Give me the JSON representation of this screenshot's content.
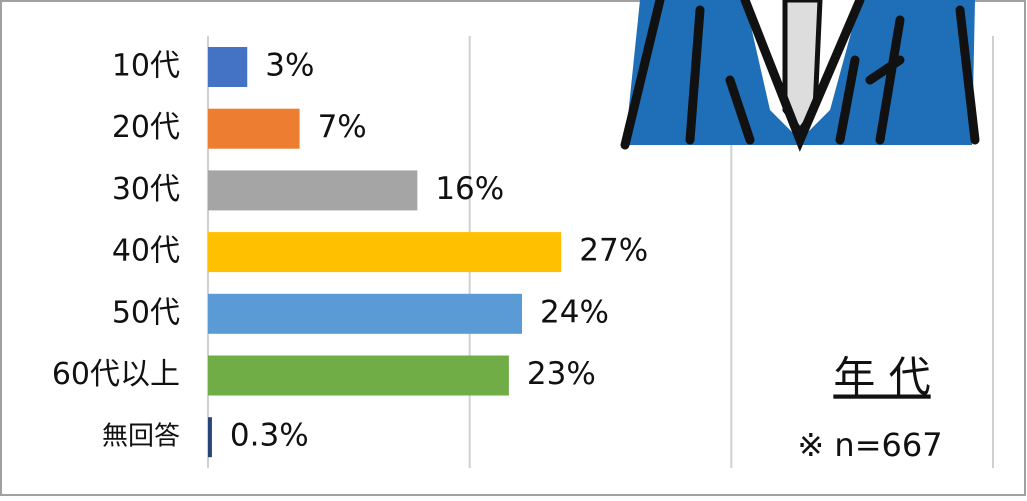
{
  "chart_data": {
    "type": "bar",
    "orientation": "horizontal",
    "title": "年 代",
    "note": "※ n=667",
    "categories": [
      "10代",
      "20代",
      "30代",
      "40代",
      "50代",
      "60代以上",
      "無回答"
    ],
    "values": [
      3,
      7,
      16,
      27,
      24,
      23,
      0.3
    ],
    "value_labels": [
      "3%",
      "7%",
      "16%",
      "27%",
      "24%",
      "23%",
      "0.3%"
    ],
    "colors": [
      "#4472c4",
      "#ed7d31",
      "#a5a5a5",
      "#ffc000",
      "#5b9bd5",
      "#70ad47",
      "#264478"
    ],
    "xlim": [
      0,
      60
    ],
    "xticks": [
      0,
      20,
      40,
      60
    ],
    "grid": true
  }
}
